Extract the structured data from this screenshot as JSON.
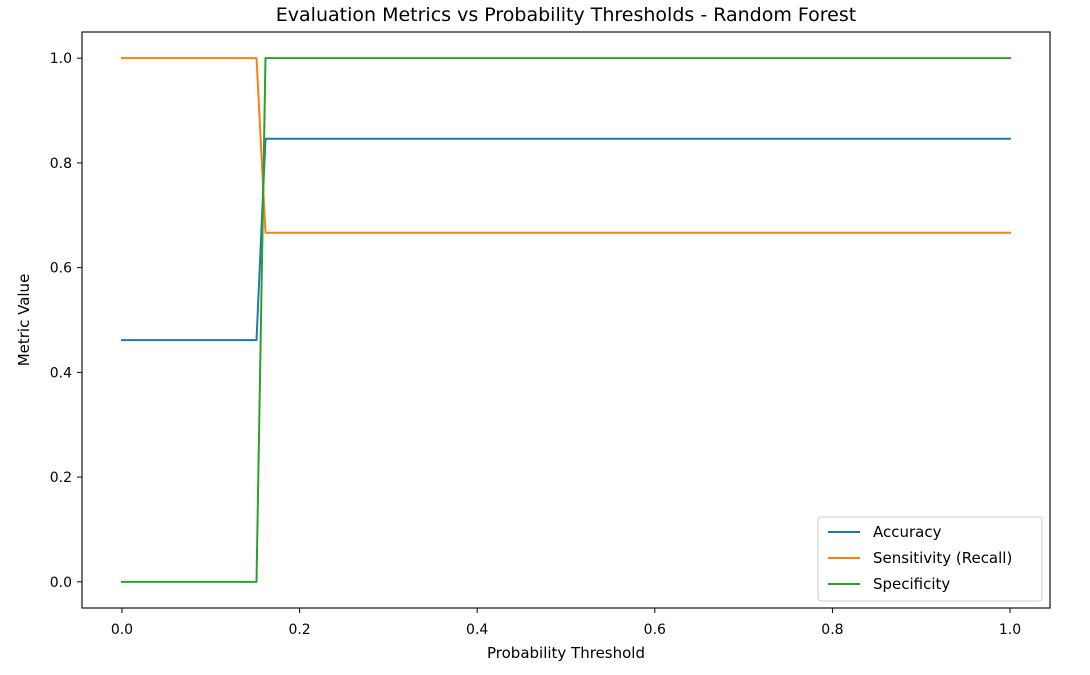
{
  "chart_data": {
    "type": "line",
    "title": "Evaluation Metrics vs Probability Thresholds - Random Forest",
    "xlabel": "Probability Threshold",
    "ylabel": "Metric Value",
    "xlim": [
      -0.045,
      1.045
    ],
    "ylim": [
      -0.05,
      1.05
    ],
    "xticks": [
      0.0,
      0.2,
      0.4,
      0.6,
      0.8,
      1.0
    ],
    "xtick_labels": [
      "0.0",
      "0.2",
      "0.4",
      "0.6",
      "0.8",
      "1.0"
    ],
    "yticks": [
      0.0,
      0.2,
      0.4,
      0.6,
      0.8,
      1.0
    ],
    "ytick_labels": [
      "0.0",
      "0.2",
      "0.4",
      "0.6",
      "0.8",
      "1.0"
    ],
    "grid": false,
    "legend_position": "lower-right",
    "x": [
      0.0,
      0.1515,
      0.1616,
      1.0
    ],
    "series": [
      {
        "name": "Accuracy",
        "color": "#1f77b4",
        "values": [
          0.4615,
          0.4615,
          0.8462,
          0.8462
        ]
      },
      {
        "name": "Sensitivity (Recall)",
        "color": "#ff7f0e",
        "values": [
          1.0,
          1.0,
          0.6667,
          0.6667
        ]
      },
      {
        "name": "Specificity",
        "color": "#2ca02c",
        "values": [
          0.0,
          0.0,
          1.0,
          1.0
        ]
      }
    ]
  }
}
